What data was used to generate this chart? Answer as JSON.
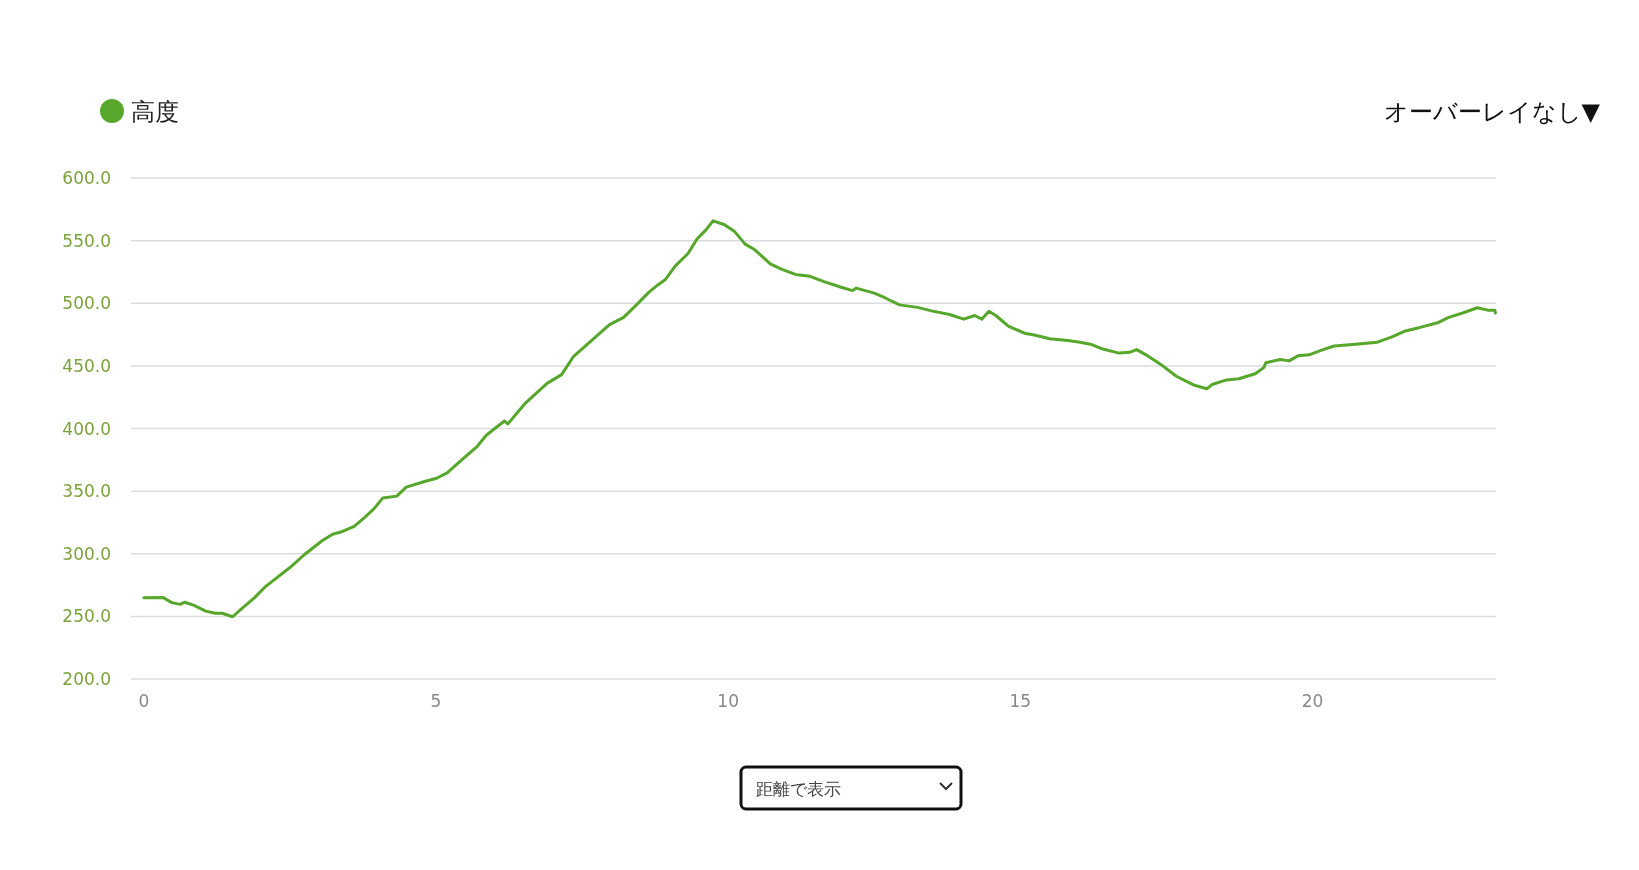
{
  "chart_data": {
    "type": "line",
    "x": [
      0,
      0.33,
      0.48,
      0.62,
      0.7,
      0.85,
      1.06,
      1.22,
      1.34,
      1.52,
      1.64,
      1.89,
      2.07,
      2.5,
      2.74,
      3.05,
      3.23,
      3.39,
      3.6,
      3.78,
      3.94,
      4.09,
      4.33,
      4.49,
      4.79,
      5.01,
      5.19,
      5.43,
      5.71,
      5.86,
      6.17,
      6.23,
      6.53,
      6.9,
      7.15,
      7.35,
      7.66,
      7.97,
      8.21,
      8.43,
      8.64,
      8.79,
      8.92,
      9.1,
      9.31,
      9.47,
      9.62,
      9.74,
      9.93,
      10.11,
      10.29,
      10.45,
      10.72,
      10.91,
      11.15,
      11.4,
      11.64,
      11.92,
      12.13,
      12.19,
      12.5,
      12.68,
      12.93,
      13.24,
      13.48,
      13.79,
      14.03,
      14.22,
      14.34,
      14.46,
      14.58,
      14.8,
      15.07,
      15.26,
      15.5,
      15.81,
      16.02,
      16.2,
      16.38,
      16.69,
      16.87,
      16.99,
      17.15,
      17.43,
      17.67,
      17.98,
      18.19,
      18.28,
      18.53,
      18.74,
      19.02,
      19.17,
      19.2,
      19.45,
      19.6,
      19.75,
      19.94,
      20.18,
      20.37,
      20.74,
      21.1,
      21.35,
      21.59,
      21.84,
      22.14,
      22.33,
      22.57,
      22.82,
      23.0,
      23.12,
      23.13
    ],
    "series": [
      {
        "name": "高度",
        "color": "#56a72b",
        "values": [
          264.8,
          265,
          261,
          259.6,
          261.3,
          259,
          254.2,
          252.5,
          252.5,
          249.7,
          254.8,
          264.8,
          273.3,
          289,
          299,
          310.4,
          315.6,
          317.6,
          321.8,
          329,
          336,
          344.6,
          346,
          353.2,
          357.5,
          360.3,
          364.6,
          374.6,
          386,
          394.6,
          406,
          403.7,
          420.3,
          436,
          443,
          457.3,
          470.2,
          483,
          488.7,
          498.7,
          508.7,
          514.4,
          518.7,
          530,
          539.5,
          551.5,
          558.6,
          565.8,
          562.9,
          557.2,
          547.2,
          542.9,
          531.5,
          527.2,
          523,
          521.5,
          517.3,
          513,
          510.1,
          512.1,
          508.1,
          504.4,
          498.7,
          496.7,
          493.9,
          491,
          487.3,
          490.2,
          487.3,
          493.6,
          490.2,
          481.6,
          476.1,
          474.5,
          471.6,
          470.2,
          468.8,
          467.3,
          463.9,
          460.2,
          460.8,
          463,
          458.8,
          450.2,
          441.7,
          434.5,
          431.7,
          435.1,
          438.8,
          439.7,
          443.7,
          448.8,
          452.5,
          455.1,
          454,
          458,
          458.8,
          463,
          465.9,
          467.3,
          468.8,
          473,
          477.9,
          480.7,
          484.4,
          488.7,
          492.2,
          496.4,
          494.5,
          494.5,
          492.2
        ]
      }
    ],
    "xlim": [
      -0.22,
      23.14
    ],
    "xticks": [
      0,
      5,
      10,
      15,
      20
    ],
    "ylim": [
      200,
      600
    ],
    "yticks": [
      {
        "value": 200,
        "label": "200.0"
      },
      {
        "value": 250,
        "label": "250.0"
      },
      {
        "value": 300,
        "label": "300.0"
      },
      {
        "value": 350,
        "label": "350.0"
      },
      {
        "value": 400,
        "label": "400.0"
      },
      {
        "value": 450,
        "label": "450.0"
      },
      {
        "value": 500,
        "label": "500.0"
      },
      {
        "value": 550,
        "label": "550.0"
      },
      {
        "value": 600,
        "label": "600.0"
      }
    ],
    "grid": "y",
    "legend": "top left",
    "marker": "none",
    "line_style": "solid",
    "annotations": [
      "オーバーレイなし▼",
      "距離で表示"
    ]
  }
}
